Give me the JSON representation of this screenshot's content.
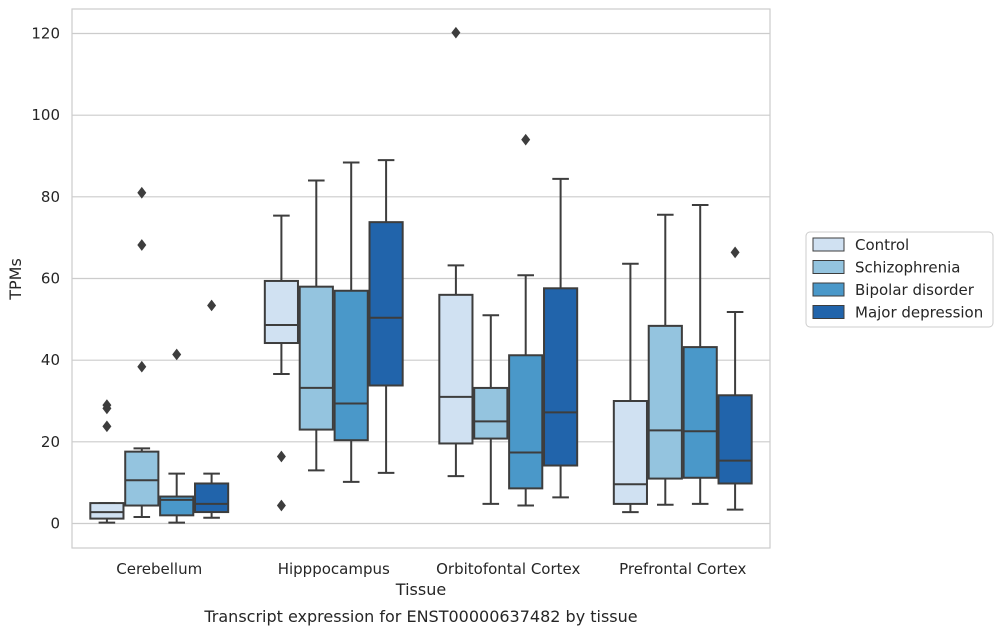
{
  "chart_data": {
    "type": "box",
    "title": "",
    "caption": "Transcript expression for ENST00000637482 by tissue",
    "xlabel": "Tissue",
    "ylabel": "TPMs",
    "ylim": [
      -6,
      126
    ],
    "yticks": [
      0,
      20,
      40,
      60,
      80,
      100,
      120
    ],
    "grid": "horizontal",
    "legend_position": "right",
    "categories": [
      "Cerebellum",
      "Hipppocampus",
      "Orbitofontal Cortex",
      "Prefrontal Cortex"
    ],
    "series": [
      {
        "name": "Control",
        "color": "#d0e1f2",
        "boxes": [
          {
            "whisker_low": 0.2,
            "q1": 1.2,
            "median": 2.8,
            "q3": 5.0,
            "whisker_high": 5.0,
            "outliers": [
              23.8,
              28.2,
              29.0
            ]
          },
          {
            "whisker_low": 36.6,
            "q1": 44.2,
            "median": 48.6,
            "q3": 59.4,
            "whisker_high": 75.4,
            "outliers": [
              4.4,
              16.4
            ]
          },
          {
            "whisker_low": 11.6,
            "q1": 19.6,
            "median": 31.0,
            "q3": 56.0,
            "whisker_high": 63.2,
            "outliers": [
              120.2
            ]
          },
          {
            "whisker_low": 2.8,
            "q1": 4.8,
            "median": 9.6,
            "q3": 30.0,
            "whisker_high": 63.6,
            "outliers": []
          }
        ]
      },
      {
        "name": "Schizophrenia",
        "color": "#94c4df",
        "boxes": [
          {
            "whisker_low": 1.6,
            "q1": 4.4,
            "median": 10.6,
            "q3": 17.6,
            "whisker_high": 18.4,
            "outliers": [
              38.4,
              68.2,
              81.0
            ]
          },
          {
            "whisker_low": 13.0,
            "q1": 23.0,
            "median": 33.2,
            "q3": 58.0,
            "whisker_high": 84.0,
            "outliers": []
          },
          {
            "whisker_low": 4.8,
            "q1": 20.8,
            "median": 25.0,
            "q3": 33.2,
            "whisker_high": 51.0,
            "outliers": []
          },
          {
            "whisker_low": 4.6,
            "q1": 11.0,
            "median": 22.8,
            "q3": 48.4,
            "whisker_high": 75.6,
            "outliers": []
          }
        ]
      },
      {
        "name": "Bipolar disorder",
        "color": "#4a98c9",
        "boxes": [
          {
            "whisker_low": 0.2,
            "q1": 2.0,
            "median": 5.8,
            "q3": 6.6,
            "whisker_high": 12.2,
            "outliers": [
              41.4
            ]
          },
          {
            "whisker_low": 10.2,
            "q1": 20.4,
            "median": 29.4,
            "q3": 57.0,
            "whisker_high": 88.4,
            "outliers": []
          },
          {
            "whisker_low": 4.4,
            "q1": 8.6,
            "median": 17.4,
            "q3": 41.2,
            "whisker_high": 60.8,
            "outliers": [
              94.0
            ]
          },
          {
            "whisker_low": 4.8,
            "q1": 11.2,
            "median": 22.6,
            "q3": 43.2,
            "whisker_high": 78.0,
            "outliers": []
          }
        ]
      },
      {
        "name": "Major depression",
        "color": "#2164ab",
        "boxes": [
          {
            "whisker_low": 1.4,
            "q1": 2.8,
            "median": 4.8,
            "q3": 9.8,
            "whisker_high": 12.2,
            "outliers": [
              53.4
            ]
          },
          {
            "whisker_low": 12.4,
            "q1": 33.8,
            "median": 50.4,
            "q3": 73.8,
            "whisker_high": 89.0,
            "outliers": []
          },
          {
            "whisker_low": 6.4,
            "q1": 14.2,
            "median": 27.2,
            "q3": 57.6,
            "whisker_high": 84.4,
            "outliers": []
          },
          {
            "whisker_low": 3.4,
            "q1": 9.8,
            "median": 15.4,
            "q3": 31.4,
            "whisker_high": 51.8,
            "outliers": [
              66.4
            ]
          }
        ]
      }
    ]
  }
}
